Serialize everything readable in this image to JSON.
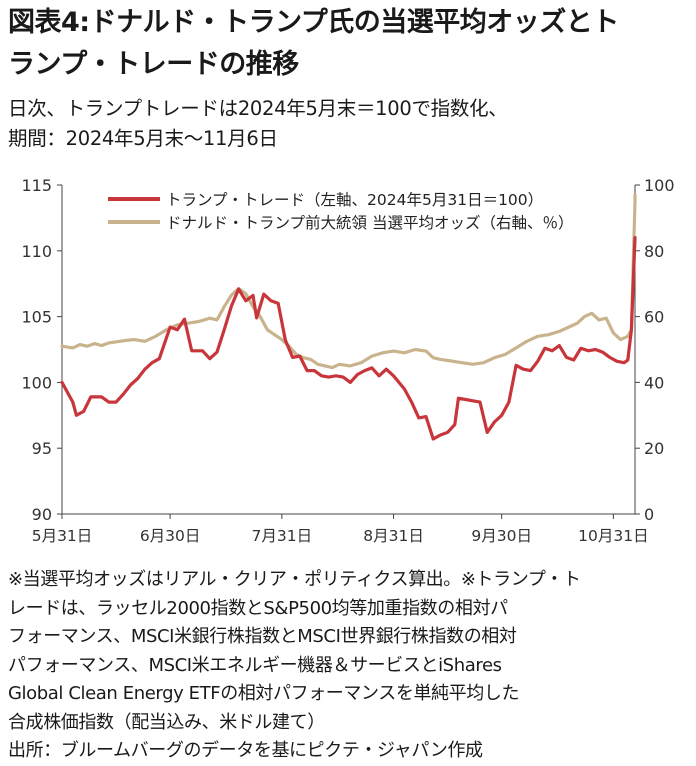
{
  "header": {
    "title_line1": "図表4:ドナルド・トランプ氏の当選平均オッズとト",
    "title_line2": "ランプ・トレードの推移",
    "subtitle_line1": "日次、トランプトレードは2024年5月末＝100で指数化、",
    "subtitle_line2": "期間：2024年5月末～11月6日"
  },
  "chart_data": {
    "type": "line",
    "x_labels": [
      "5月31日",
      "6月30日",
      "7月31日",
      "8月31日",
      "9月30日",
      "10月31日"
    ],
    "x_label_dates": [
      "2024-05-31",
      "2024-06-30",
      "2024-07-31",
      "2024-08-31",
      "2024-09-30",
      "2024-10-31"
    ],
    "x_range": [
      "2024-05-31",
      "2024-11-06"
    ],
    "left_axis": {
      "min": 90,
      "max": 115,
      "ticks": [
        "90",
        "95",
        "100",
        "105",
        "110",
        "115"
      ]
    },
    "right_axis": {
      "min": 0,
      "max": 100,
      "ticks": [
        "0",
        "20",
        "40",
        "60",
        "80",
        "100"
      ]
    },
    "grid": false,
    "legend_position": "top",
    "series": [
      {
        "name": "トランプ・トレード（左軸、2024年5月31日＝100）",
        "axis": "left",
        "color": "#c8353a",
        "points": [
          [
            "2024-05-31",
            100.0
          ],
          [
            "2024-06-03",
            98.5
          ],
          [
            "2024-06-04",
            97.5
          ],
          [
            "2024-06-06",
            97.8
          ],
          [
            "2024-06-08",
            98.9
          ],
          [
            "2024-06-11",
            98.9
          ],
          [
            "2024-06-13",
            98.5
          ],
          [
            "2024-06-15",
            98.5
          ],
          [
            "2024-06-17",
            99.1
          ],
          [
            "2024-06-19",
            99.8
          ],
          [
            "2024-06-21",
            100.3
          ],
          [
            "2024-06-23",
            101.0
          ],
          [
            "2024-06-25",
            101.5
          ],
          [
            "2024-06-27",
            101.8
          ],
          [
            "2024-06-30",
            104.2
          ],
          [
            "2024-07-02",
            104.0
          ],
          [
            "2024-07-04",
            104.8
          ],
          [
            "2024-07-06",
            102.4
          ],
          [
            "2024-07-09",
            102.4
          ],
          [
            "2024-07-11",
            101.8
          ],
          [
            "2024-07-13",
            102.3
          ],
          [
            "2024-07-15",
            104.0
          ],
          [
            "2024-07-17",
            105.8
          ],
          [
            "2024-07-19",
            107.1
          ],
          [
            "2024-07-21",
            106.2
          ],
          [
            "2024-07-23",
            106.6
          ],
          [
            "2024-07-24",
            104.9
          ],
          [
            "2024-07-26",
            106.7
          ],
          [
            "2024-07-28",
            106.2
          ],
          [
            "2024-07-30",
            106.0
          ],
          [
            "2024-08-01",
            103.2
          ],
          [
            "2024-08-03",
            101.9
          ],
          [
            "2024-08-05",
            102.0
          ],
          [
            "2024-08-07",
            100.9
          ],
          [
            "2024-08-09",
            100.9
          ],
          [
            "2024-08-11",
            100.5
          ],
          [
            "2024-08-13",
            100.4
          ],
          [
            "2024-08-15",
            100.5
          ],
          [
            "2024-08-17",
            100.4
          ],
          [
            "2024-08-19",
            100.0
          ],
          [
            "2024-08-21",
            100.6
          ],
          [
            "2024-08-23",
            100.9
          ],
          [
            "2024-08-25",
            101.1
          ],
          [
            "2024-08-27",
            100.5
          ],
          [
            "2024-08-29",
            101.0
          ],
          [
            "2024-08-31",
            100.5
          ],
          [
            "2024-09-03",
            99.5
          ],
          [
            "2024-09-05",
            98.5
          ],
          [
            "2024-09-07",
            97.3
          ],
          [
            "2024-09-09",
            97.4
          ],
          [
            "2024-09-11",
            95.7
          ],
          [
            "2024-09-13",
            96.0
          ],
          [
            "2024-09-15",
            96.2
          ],
          [
            "2024-09-17",
            96.8
          ],
          [
            "2024-09-18",
            98.8
          ],
          [
            "2024-09-20",
            98.7
          ],
          [
            "2024-09-22",
            98.6
          ],
          [
            "2024-09-24",
            98.5
          ],
          [
            "2024-09-26",
            96.2
          ],
          [
            "2024-09-28",
            97.0
          ],
          [
            "2024-09-30",
            97.5
          ],
          [
            "2024-10-02",
            98.5
          ],
          [
            "2024-10-04",
            101.3
          ],
          [
            "2024-10-06",
            101.0
          ],
          [
            "2024-10-08",
            100.9
          ],
          [
            "2024-10-10",
            101.6
          ],
          [
            "2024-10-12",
            102.6
          ],
          [
            "2024-10-14",
            102.4
          ],
          [
            "2024-10-16",
            102.8
          ],
          [
            "2024-10-18",
            101.9
          ],
          [
            "2024-10-20",
            101.7
          ],
          [
            "2024-10-22",
            102.6
          ],
          [
            "2024-10-24",
            102.4
          ],
          [
            "2024-10-26",
            102.5
          ],
          [
            "2024-10-28",
            102.3
          ],
          [
            "2024-10-30",
            101.9
          ],
          [
            "2024-11-01",
            101.6
          ],
          [
            "2024-11-03",
            101.5
          ],
          [
            "2024-11-04",
            101.7
          ],
          [
            "2024-11-05",
            104.0
          ],
          [
            "2024-11-06",
            111.0
          ]
        ]
      },
      {
        "name": "ドナルド・トランプ前大統領 当選平均オッズ（右軸、％）",
        "axis": "right",
        "color": "#c9b38d",
        "points": [
          [
            "2024-05-31",
            51.0
          ],
          [
            "2024-06-03",
            50.5
          ],
          [
            "2024-06-05",
            51.5
          ],
          [
            "2024-06-07",
            51.0
          ],
          [
            "2024-06-09",
            51.8
          ],
          [
            "2024-06-11",
            51.2
          ],
          [
            "2024-06-13",
            52.0
          ],
          [
            "2024-06-16",
            52.5
          ],
          [
            "2024-06-18",
            52.8
          ],
          [
            "2024-06-20",
            53.0
          ],
          [
            "2024-06-23",
            52.5
          ],
          [
            "2024-06-26",
            54.0
          ],
          [
            "2024-06-29",
            56.0
          ],
          [
            "2024-07-02",
            57.5
          ],
          [
            "2024-07-05",
            58.0
          ],
          [
            "2024-07-08",
            58.5
          ],
          [
            "2024-07-11",
            59.5
          ],
          [
            "2024-07-13",
            59.0
          ],
          [
            "2024-07-15",
            63.0
          ],
          [
            "2024-07-17",
            66.5
          ],
          [
            "2024-07-19",
            68.5
          ],
          [
            "2024-07-21",
            67.0
          ],
          [
            "2024-07-23",
            63.0
          ],
          [
            "2024-07-25",
            60.0
          ],
          [
            "2024-07-27",
            56.0
          ],
          [
            "2024-07-29",
            54.5
          ],
          [
            "2024-07-31",
            53.0
          ],
          [
            "2024-08-02",
            51.0
          ],
          [
            "2024-08-04",
            48.5
          ],
          [
            "2024-08-06",
            47.5
          ],
          [
            "2024-08-08",
            47.0
          ],
          [
            "2024-08-10",
            45.5
          ],
          [
            "2024-08-12",
            45.0
          ],
          [
            "2024-08-14",
            44.5
          ],
          [
            "2024-08-16",
            45.5
          ],
          [
            "2024-08-19",
            45.0
          ],
          [
            "2024-08-22",
            46.0
          ],
          [
            "2024-08-25",
            48.0
          ],
          [
            "2024-08-28",
            49.0
          ],
          [
            "2024-08-31",
            49.5
          ],
          [
            "2024-09-03",
            49.0
          ],
          [
            "2024-09-06",
            50.0
          ],
          [
            "2024-09-09",
            49.5
          ],
          [
            "2024-09-11",
            47.5
          ],
          [
            "2024-09-13",
            47.0
          ],
          [
            "2024-09-16",
            46.5
          ],
          [
            "2024-09-19",
            46.0
          ],
          [
            "2024-09-22",
            45.5
          ],
          [
            "2024-09-25",
            46.0
          ],
          [
            "2024-09-28",
            47.5
          ],
          [
            "2024-10-01",
            48.5
          ],
          [
            "2024-10-04",
            50.5
          ],
          [
            "2024-10-07",
            52.5
          ],
          [
            "2024-10-10",
            54.0
          ],
          [
            "2024-10-13",
            54.5
          ],
          [
            "2024-10-16",
            55.5
          ],
          [
            "2024-10-19",
            57.0
          ],
          [
            "2024-10-21",
            58.0
          ],
          [
            "2024-10-23",
            60.0
          ],
          [
            "2024-10-25",
            61.0
          ],
          [
            "2024-10-27",
            59.0
          ],
          [
            "2024-10-29",
            59.5
          ],
          [
            "2024-10-31",
            55.0
          ],
          [
            "2024-11-02",
            53.0
          ],
          [
            "2024-11-04",
            54.0
          ],
          [
            "2024-11-05",
            56.0
          ],
          [
            "2024-11-06",
            95.0
          ],
          [
            "2024-11-06",
            97.0
          ]
        ]
      }
    ]
  },
  "notes": [
    "※当選平均オッズはリアル・クリア・ポリティクス算出。※トランプ・ト",
    "レードは、ラッセル2000指数とS&P500均等加重指数の相対パ",
    "フォーマンス、MSCI米銀行株指数とMSCI世界銀行株指数の相対",
    "パフォーマンス、MSCI米エネルギー機器＆サービスとiShares",
    "Global Clean Energy ETFの相対パフォーマンスを単純平均した",
    "合成株価指数（配当込み、米ドル建て）",
    "出所：ブルームバーグのデータを基にピクテ・ジャパン作成"
  ]
}
